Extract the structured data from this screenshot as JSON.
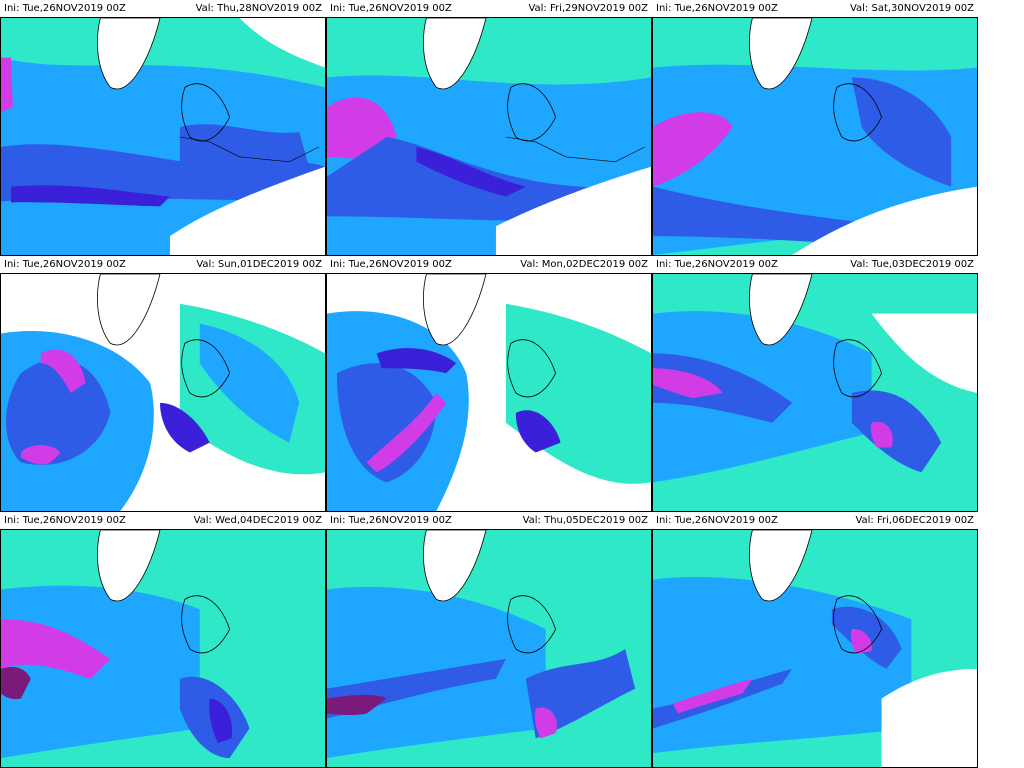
{
  "panels": [
    {
      "ini": "Ini: Tue,26NOV2019 00Z",
      "val": "Val: Thu,28NOV2019 00Z"
    },
    {
      "ini": "Ini: Tue,26NOV2019 00Z",
      "val": "Val: Fri,29NOV2019 00Z"
    },
    {
      "ini": "Ini: Tue,26NOV2019 00Z",
      "val": "Val: Sat,30NOV2019 00Z"
    },
    {
      "ini": "Ini: Tue,26NOV2019 00Z",
      "val": "Val: Sun,01DEC2019 00Z"
    },
    {
      "ini": "Ini: Tue,26NOV2019 00Z",
      "val": "Val: Mon,02DEC2019 00Z"
    },
    {
      "ini": "Ini: Tue,26NOV2019 00Z",
      "val": "Val: Tue,03DEC2019 00Z"
    },
    {
      "ini": "Ini: Tue,26NOV2019 00Z",
      "val": "Val: Wed,04DEC2019 00Z"
    },
    {
      "ini": "Ini: Tue,26NOV2019 00Z",
      "val": "Val: Thu,05DEC2019 00Z"
    },
    {
      "ini": "Ini: Tue,26NOV2019 00Z",
      "val": "Val: Fri,06DEC2019 00Z"
    }
  ],
  "colors": {
    "field_light": "#2ee8c8",
    "field_mid": "#1fa6ff",
    "field_strong": "#2e5ce6",
    "field_heavy": "#3a20d8",
    "field_extreme": "#d23ce6",
    "field_max": "#7a1a7a",
    "coast": "#000000",
    "background": "#ffffff"
  }
}
